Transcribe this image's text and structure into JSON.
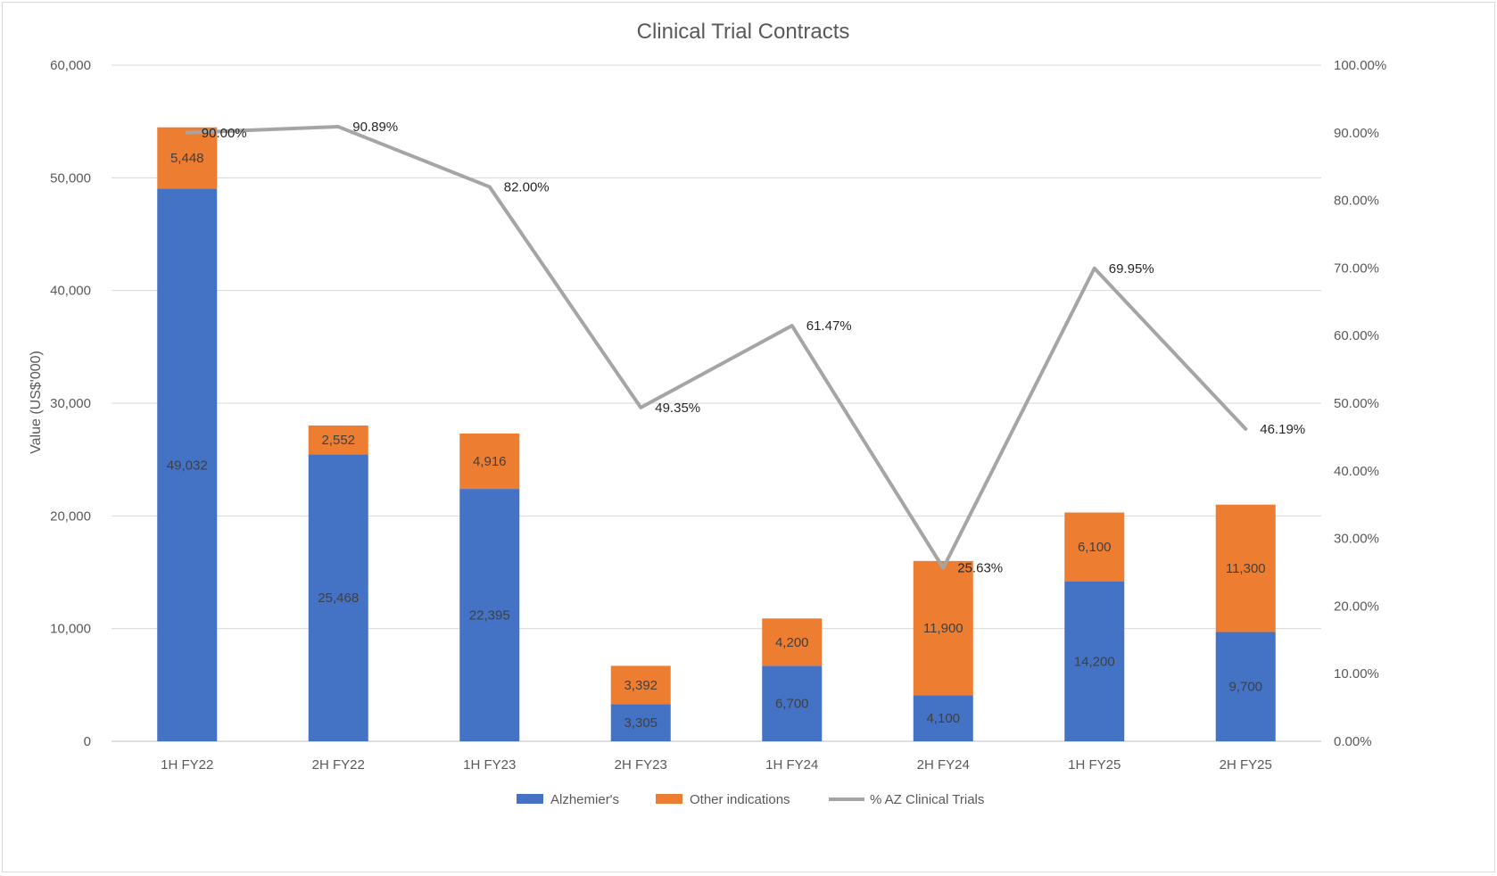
{
  "chart_data": {
    "type": "bar",
    "stacked": true,
    "title": "Clinical Trial Contracts",
    "xlabel": "",
    "ylabel": "Value (US$'000)",
    "categories": [
      "1H FY22",
      "2H FY22",
      "1H FY23",
      "2H FY23",
      "1H FY24",
      "2H FY24",
      "1H FY25",
      "2H FY25"
    ],
    "ylim": [
      0,
      60000
    ],
    "yticks": [
      "0",
      "10,000",
      "20,000",
      "30,000",
      "40,000",
      "50,000",
      "60,000"
    ],
    "y2lim": [
      0,
      100
    ],
    "y2ticks": [
      "0.00%",
      "10.00%",
      "20.00%",
      "30.00%",
      "40.00%",
      "50.00%",
      "60.00%",
      "70.00%",
      "80.00%",
      "90.00%",
      "100.00%"
    ],
    "series": [
      {
        "name": "Alzhemier's",
        "kind": "bar",
        "color": "#4472c4",
        "values": [
          49032,
          25468,
          22395,
          3305,
          6700,
          4100,
          14200,
          9700
        ],
        "labels": [
          "49,032",
          "25,468",
          "22,395",
          "3,305",
          "6,700",
          "4,100",
          "14,200",
          "9,700"
        ]
      },
      {
        "name": "Other indications",
        "kind": "bar",
        "color": "#ed7d31",
        "values": [
          5448,
          2552,
          4916,
          3392,
          4200,
          11900,
          6100,
          11300
        ],
        "labels": [
          "5,448",
          "2,552",
          "4,916",
          "3,392",
          "4,200",
          "11,900",
          "6,100",
          "11,300"
        ]
      },
      {
        "name": "% AZ Clinical Trials",
        "kind": "line",
        "axis": "secondary",
        "color": "#a5a5a5",
        "values": [
          90.0,
          90.89,
          82.0,
          49.35,
          61.47,
          25.63,
          69.95,
          46.19
        ],
        "labels": [
          "90.00%",
          "90.89%",
          "82.00%",
          "49.35%",
          "61.47%",
          "25.63%",
          "69.95%",
          "46.19%"
        ]
      }
    ],
    "grid": true,
    "legend": "bottom"
  }
}
